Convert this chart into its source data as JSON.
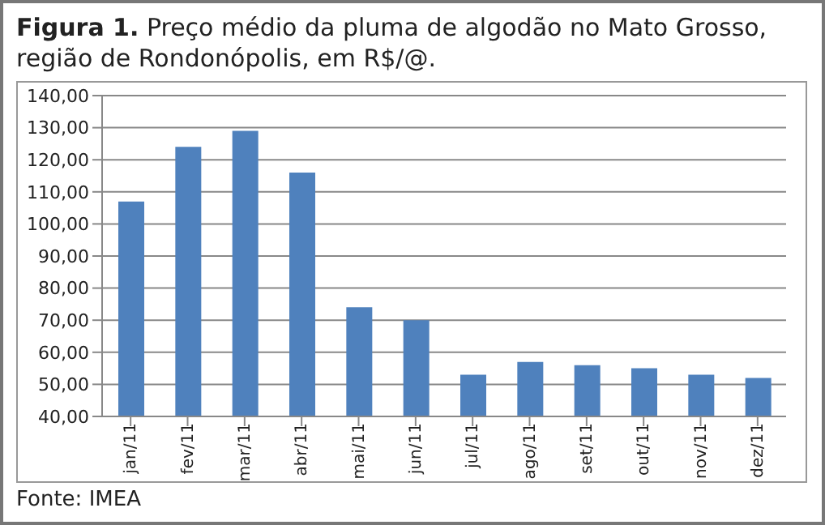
{
  "chart_data": {
    "type": "bar",
    "title": "Figura 1. Preço médio da pluma de algodão no Mato Grosso, região de Rondonópolis, em R$/@.",
    "categories": [
      "jan/11",
      "fev/11",
      "mar/11",
      "abr/11",
      "mai/11",
      "jun/11",
      "jul/11",
      "ago/11",
      "set/11",
      "out/11",
      "nov/11",
      "dez/11"
    ],
    "values": [
      107,
      124,
      129,
      116,
      74,
      70,
      53,
      57,
      56,
      55,
      53,
      52
    ],
    "color": "#4f81bd",
    "ylim": [
      40,
      140
    ],
    "yticks": [
      {
        "value": 40,
        "label": "40,00"
      },
      {
        "value": 50,
        "label": "50,00"
      },
      {
        "value": 60,
        "label": "60,00"
      },
      {
        "value": 70,
        "label": "70,00"
      },
      {
        "value": 80,
        "label": "80,00"
      },
      {
        "value": 90,
        "label": "90,00"
      },
      {
        "value": 100,
        "label": "100,00"
      },
      {
        "value": 110,
        "label": "110,00"
      },
      {
        "value": 120,
        "label": "120,00"
      },
      {
        "value": 130,
        "label": "130,00"
      },
      {
        "value": 140,
        "label": "140,00"
      }
    ],
    "grid": "y",
    "annotations": [
      "Fonte: IMEA"
    ]
  }
}
